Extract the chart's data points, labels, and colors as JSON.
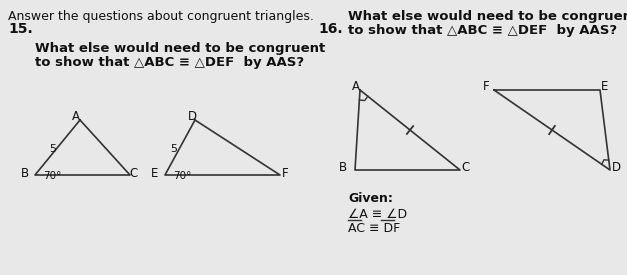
{
  "bg_color": "#e8e8e8",
  "title_text": "Answer the questions about congruent triangles.",
  "num15": "15.",
  "num16": "16.",
  "q15_line1": "What else would need to be congruent",
  "q15_line2": "to show that △ABC ≡ △DEF  by AAS?",
  "q16_line1": "What else would need to be congruent",
  "q16_line2": "to show that △ABC ≡ △DEF  by AAS?",
  "given_label": "Given:",
  "given1": "∠A ≡ ∠D",
  "given2_plain": "AC ≡ DF",
  "line_color": "#333333",
  "text_color": "#111111",
  "note_color": "#555555"
}
